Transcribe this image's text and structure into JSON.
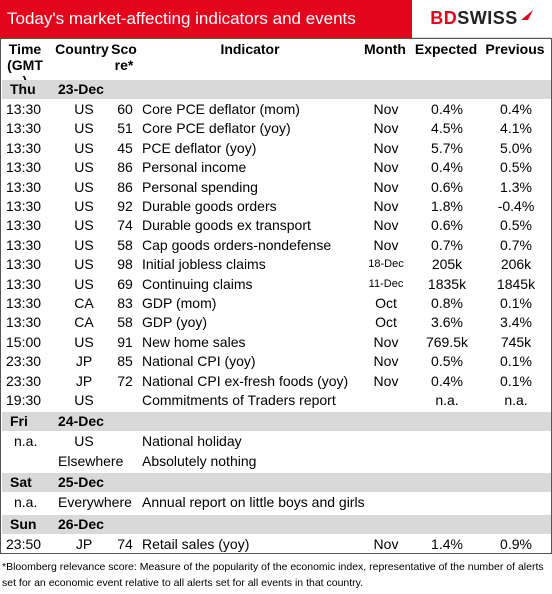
{
  "header": {
    "title": "Today's market-affecting indicators and events",
    "logo_left": "BD",
    "logo_right": "SWISS"
  },
  "columns": {
    "time": "Time (GMT)",
    "country": "Country",
    "score": "Sco re*",
    "indicator": "Indicator",
    "month": "Month",
    "expected": "Expected",
    "previous": "Previous"
  },
  "days": [
    {
      "day": "Thu",
      "date": "23-Dec",
      "rows": [
        {
          "time": "13:30",
          "country": "US",
          "score": "60",
          "indicator": "Core PCE deflator (mom)",
          "month": "Nov",
          "expected": "0.4%",
          "previous": "0.4%"
        },
        {
          "time": "13:30",
          "country": "US",
          "score": "51",
          "indicator": "Core PCE deflator (yoy)",
          "month": "Nov",
          "expected": "4.5%",
          "previous": "4.1%"
        },
        {
          "time": "13:30",
          "country": "US",
          "score": "45",
          "indicator": "PCE deflator (yoy)",
          "month": "Nov",
          "expected": "5.7%",
          "previous": "5.0%"
        },
        {
          "time": "13:30",
          "country": "US",
          "score": "86",
          "indicator": "Personal income",
          "month": "Nov",
          "expected": "0.4%",
          "previous": "0.5%"
        },
        {
          "time": "13:30",
          "country": "US",
          "score": "86",
          "indicator": "Personal spending",
          "month": "Nov",
          "expected": "0.6%",
          "previous": "1.3%"
        },
        {
          "time": "13:30",
          "country": "US",
          "score": "92",
          "indicator": "Durable goods orders",
          "month": "Nov",
          "expected": "1.8%",
          "previous": "-0.4%"
        },
        {
          "time": "13:30",
          "country": "US",
          "score": "74",
          "indicator": "Durable goods ex transport",
          "month": "Nov",
          "expected": "0.6%",
          "previous": "0.5%"
        },
        {
          "time": "13:30",
          "country": "US",
          "score": "58",
          "indicator": "Cap goods orders-nondefense",
          "month": "Nov",
          "expected": "0.7%",
          "previous": "0.7%"
        },
        {
          "time": "13:30",
          "country": "US",
          "score": "98",
          "indicator": "Initial jobless claims",
          "month": "18-Dec",
          "expected": "205k",
          "previous": "206k"
        },
        {
          "time": "13:30",
          "country": "US",
          "score": "69",
          "indicator": "Continuing claims",
          "month": "11-Dec",
          "expected": "1835k",
          "previous": "1845k"
        },
        {
          "time": "13:30",
          "country": "CA",
          "score": "83",
          "indicator": "GDP (mom)",
          "month": "Oct",
          "expected": "0.8%",
          "previous": "0.1%"
        },
        {
          "time": "13:30",
          "country": "CA",
          "score": "58",
          "indicator": "GDP (yoy)",
          "month": "Oct",
          "expected": "3.6%",
          "previous": "3.4%"
        },
        {
          "time": "15:00",
          "country": "US",
          "score": "91",
          "indicator": "New home sales",
          "month": "Nov",
          "expected": "769.5k",
          "previous": "745k"
        },
        {
          "time": "23:30",
          "country": "JP",
          "score": "85",
          "indicator": "National CPI (yoy)",
          "month": "Nov",
          "expected": "0.5%",
          "previous": "0.1%"
        },
        {
          "time": "23:30",
          "country": "JP",
          "score": "72",
          "indicator": "National CPI ex-fresh foods (yoy)",
          "month": "Nov",
          "expected": "0.4%",
          "previous": "0.1%"
        },
        {
          "time": "19:30",
          "country": "US",
          "score": "",
          "indicator": "Commitments of Traders  report",
          "month": "",
          "expected": "n.a.",
          "previous": "n.a."
        }
      ]
    },
    {
      "day": "Fri",
      "date": "24-Dec",
      "rows": [
        {
          "time": "n.a.",
          "country": "US",
          "score": "",
          "indicator": "National holiday",
          "month": "",
          "expected": "",
          "previous": ""
        },
        {
          "time": "",
          "country": "Elsewhere",
          "score": "",
          "indicator": "Absolutely nothing",
          "month": "",
          "expected": "",
          "previous": ""
        }
      ]
    },
    {
      "day": "Sat",
      "date": "25-Dec",
      "rows": [
        {
          "time": "n.a.",
          "country": "Everywhere",
          "score": "",
          "indicator": "Annual report on little boys and girls",
          "month": "",
          "expected": "",
          "previous": ""
        }
      ]
    },
    {
      "day": "Sun",
      "date": "26-Dec",
      "rows": [
        {
          "time": "23:50",
          "country": "JP",
          "score": "74",
          "indicator": "Retail sales (yoy)",
          "month": "Nov",
          "expected": "1.4%",
          "previous": "0.9%"
        }
      ]
    }
  ],
  "footnote": "*Bloomberg relevance score:  Measure of the popularity of the economic index, representative of the number of alerts set for an economic event relative to all alerts set for all events in that country.",
  "colors": {
    "brand_red": "#e3051b",
    "day_band": "#d9d9d9"
  }
}
